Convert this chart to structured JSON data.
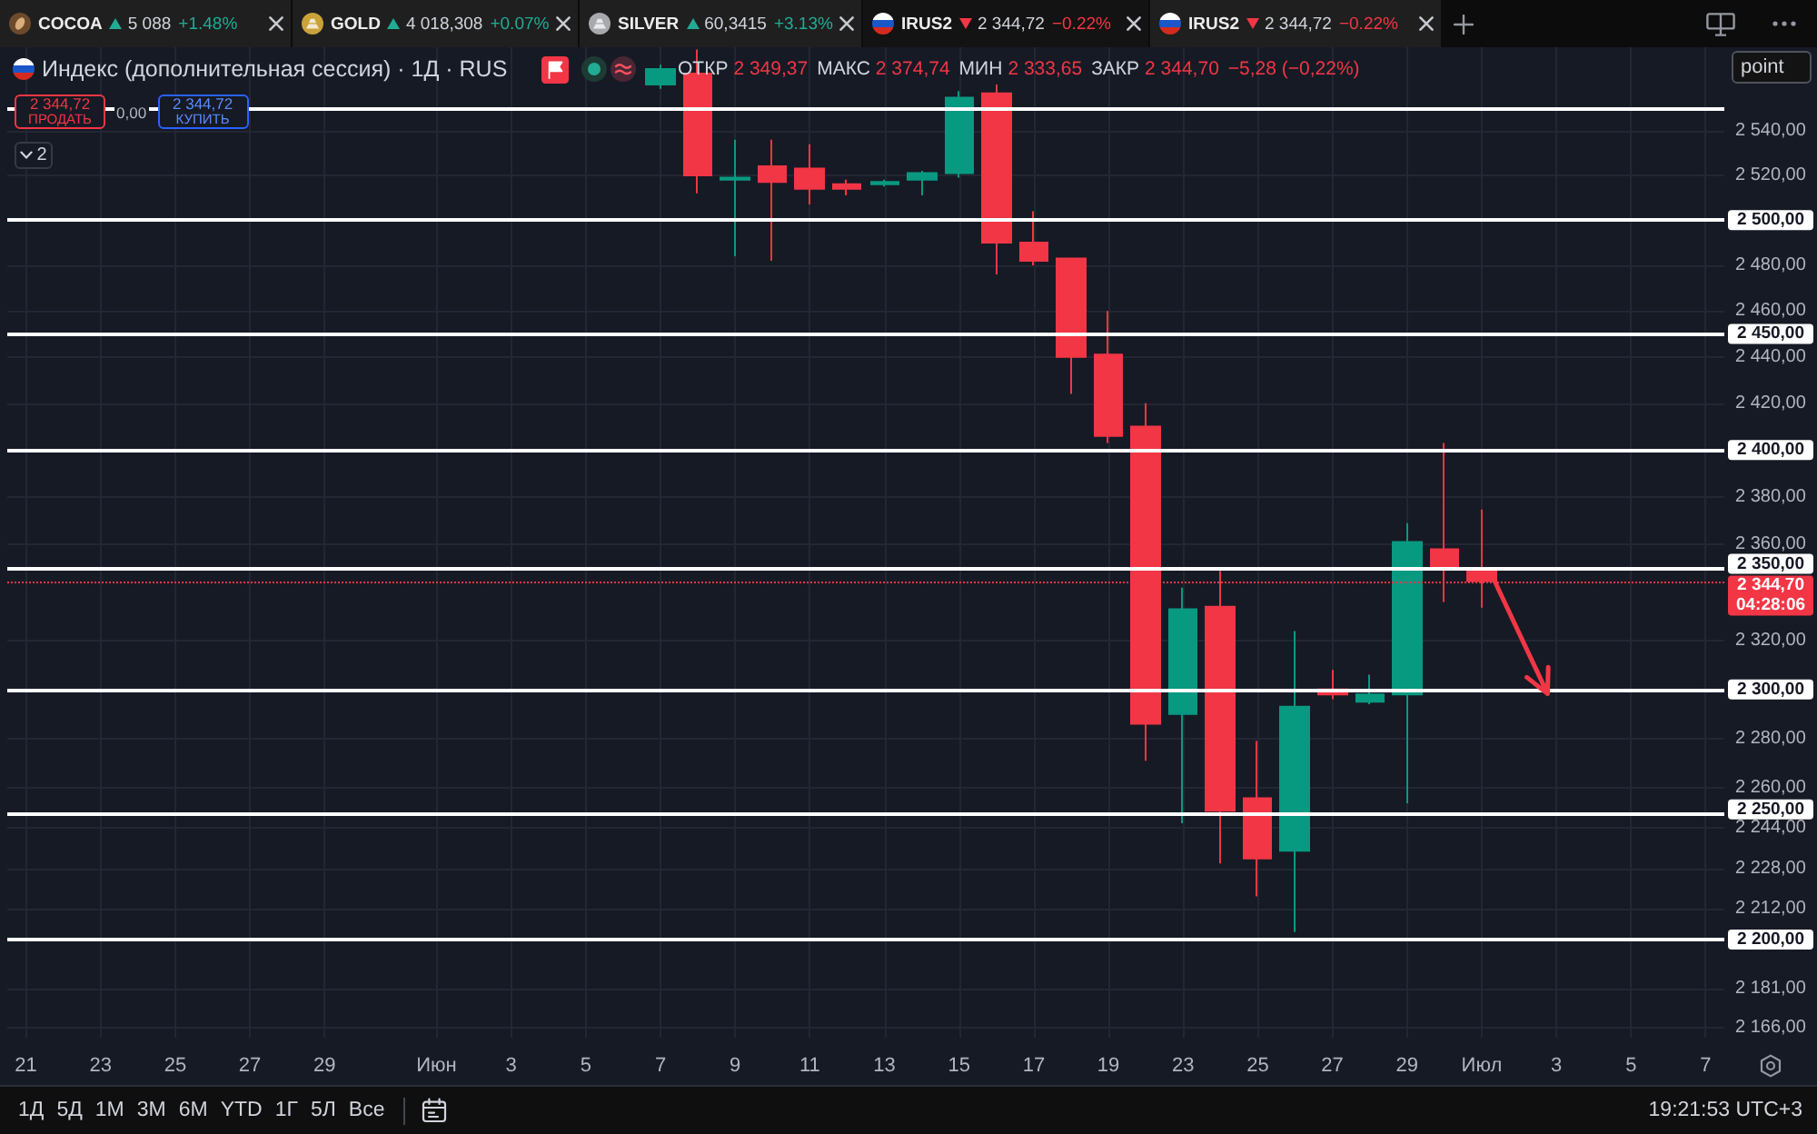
{
  "chart_data": {
    "type": "candlestick",
    "title": "Индекс (дополнительная сессия) · 1Д · RUS",
    "categories": [
      "21",
      null,
      "23",
      null,
      "25",
      null,
      "27",
      null,
      "29",
      null,
      null,
      "Июн",
      null,
      "3",
      null,
      "5",
      null,
      "7",
      null,
      "9",
      null,
      "11",
      null,
      "13",
      null,
      "15",
      null,
      "17",
      null,
      "19",
      null,
      "23",
      null,
      "25",
      null,
      "27",
      null,
      "29",
      null,
      "Июл",
      null,
      "3",
      null,
      "5",
      null,
      "7"
    ],
    "ohlc": [
      null,
      null,
      null,
      null,
      null,
      null,
      null,
      null,
      null,
      null,
      null,
      null,
      null,
      null,
      null,
      null,
      null,
      [
        2561,
        2570,
        2559,
        2568
      ],
      [
        2566,
        2577,
        2512,
        2520
      ],
      [
        2518,
        2536,
        2484,
        2519
      ],
      [
        2524,
        2536,
        2482,
        2517
      ],
      [
        2523,
        2534,
        2507,
        2514
      ],
      [
        2516,
        2518,
        2511,
        2514
      ],
      [
        2516,
        2518,
        2515,
        2517
      ],
      [
        2518,
        2522,
        2511,
        2521
      ],
      [
        2521,
        2558,
        2519,
        2555
      ],
      [
        2557,
        2561,
        2476,
        2490
      ],
      [
        2490,
        2504,
        2480,
        2482
      ],
      [
        2483,
        2483,
        2424,
        2440
      ],
      [
        2441,
        2460,
        2403,
        2406
      ],
      [
        2410,
        2420,
        2271,
        2286
      ],
      [
        2290,
        2342,
        2246,
        2333
      ],
      [
        2334,
        2349,
        2230,
        2251
      ],
      [
        2256,
        2279,
        2217,
        2232
      ],
      [
        2235,
        2324,
        2203,
        2293
      ],
      [
        2300,
        2308,
        2296,
        2298
      ],
      [
        2295,
        2306,
        2294,
        2298
      ],
      [
        2298,
        2369,
        2254,
        2361
      ],
      [
        2358,
        2403,
        2336,
        2350
      ],
      [
        2349.37,
        2374.74,
        2333.65,
        2344.7
      ],
      null,
      null,
      null,
      null,
      null,
      null
    ],
    "colors": [
      null,
      null,
      null,
      null,
      null,
      null,
      null,
      null,
      null,
      null,
      null,
      null,
      null,
      null,
      null,
      null,
      null,
      "#089981",
      "#f23645",
      "#089981",
      "#f23645",
      "#f23645",
      "#f23645",
      "#089981",
      "#089981",
      "#089981",
      "#f23645",
      "#f23645",
      "#f23645",
      "#f23645",
      "#f23645",
      "#089981",
      "#f23645",
      "#f23645",
      "#089981",
      "#f23645",
      "#089981",
      "#089981",
      "#f23645",
      "#f23645",
      null,
      null,
      null,
      null,
      null,
      null
    ],
    "ylim": [
      2162,
      2578
    ],
    "log": true,
    "grid": true,
    "yticks": [
      {
        "value": 2540,
        "label": "2 540,00"
      },
      {
        "value": 2520,
        "label": "2 520,00"
      },
      {
        "value": 2480,
        "label": "2 480,00"
      },
      {
        "value": 2460,
        "label": "2 460,00"
      },
      {
        "value": 2440,
        "label": "2 440,00"
      },
      {
        "value": 2420,
        "label": "2 420,00"
      },
      {
        "value": 2380,
        "label": "2 380,00"
      },
      {
        "value": 2360,
        "label": "2 360,00"
      },
      {
        "value": 2320,
        "label": "2 320,00"
      },
      {
        "value": 2280,
        "label": "2 280,00"
      },
      {
        "value": 2260,
        "label": "2 260,00"
      },
      {
        "value": 2244,
        "label": "2 244,00"
      },
      {
        "value": 2228,
        "label": "2 228,00"
      },
      {
        "value": 2212,
        "label": "2 212,00"
      },
      {
        "value": 2181,
        "label": "2 181,00"
      },
      {
        "value": 2166,
        "label": "2 166,00"
      }
    ],
    "ref_lines": [
      {
        "axis": "y",
        "value": 2550,
        "color": "#ffffff"
      },
      {
        "axis": "y",
        "value": 2500,
        "label": "2 500,00",
        "color": "#ffffff"
      },
      {
        "axis": "y",
        "value": 2450,
        "label": "2 450,00",
        "color": "#ffffff"
      },
      {
        "axis": "y",
        "value": 2400,
        "label": "2 400,00",
        "color": "#ffffff"
      },
      {
        "axis": "y",
        "value": 2350,
        "label": "2 350,00",
        "color": "#ffffff"
      },
      {
        "axis": "y",
        "value": 2300,
        "label": "2 300,00",
        "color": "#ffffff"
      },
      {
        "axis": "y",
        "value": 2250,
        "label": "2 250,00",
        "color": "#ffffff"
      },
      {
        "axis": "y",
        "value": 2200,
        "label": "2 200,00",
        "color": "#ffffff"
      },
      {
        "axis": "y",
        "value": 2344.7,
        "label": "2 344,70",
        "color": "#f23645",
        "line_style": "dotted"
      }
    ],
    "annotations": [
      "COCOA",
      "5 088",
      "+1.48%",
      "GOLD",
      "4 018,308",
      "+0.07%",
      "SILVER",
      "60,3415",
      "+3.13%",
      "IRUS2",
      "2 344,72",
      "−0.22%",
      "IRUS2",
      "2 344,72",
      "−0.22%",
      "ОТКР",
      "2 349,37",
      "МАКС",
      "2 374,74",
      "МИН",
      "2 333,65",
      "ЗАКР",
      "2 344,70",
      "−5,28 (−0,22%)",
      "2 344,72",
      "ПРОДАТЬ",
      "0,00",
      "2 344,72",
      "КУПИТЬ",
      "2",
      "point",
      "1Д",
      "5Д",
      "1М",
      "3М",
      "6М",
      "YTD",
      "1Г",
      "5Л",
      "Все",
      "19:21:53 UTC+3",
      "04:28:06"
    ]
  }
}
